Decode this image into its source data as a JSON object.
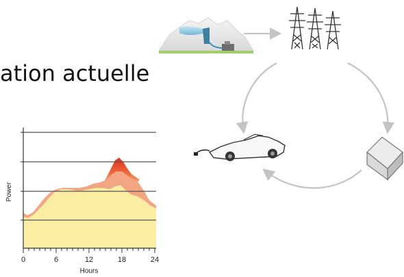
{
  "title_fragment": "ation actuelle",
  "colors": {
    "background": "#ffffff",
    "grid_line": "#555555",
    "arrow": "#bdbdbd",
    "base_fill": "#fbeea2",
    "peak_fill_top": "#e53b1d",
    "peak_fill_bottom": "#f5a46e",
    "salmon_band": "#f2a48a"
  },
  "chart_data": {
    "type": "area",
    "xlabel": "Hours",
    "ylabel": "Power",
    "x_ticks": [
      "0",
      "6",
      "12",
      "18",
      "24"
    ],
    "xlim": [
      0,
      24
    ],
    "grid": true
  },
  "diagram": {
    "nodes": [
      "hydro-plant-icon",
      "power-tower-icon",
      "house-icon",
      "electric-car-icon"
    ],
    "arrows": [
      "plant-to-towers",
      "towers-to-house",
      "house-to-car",
      "towers-to-car"
    ]
  }
}
